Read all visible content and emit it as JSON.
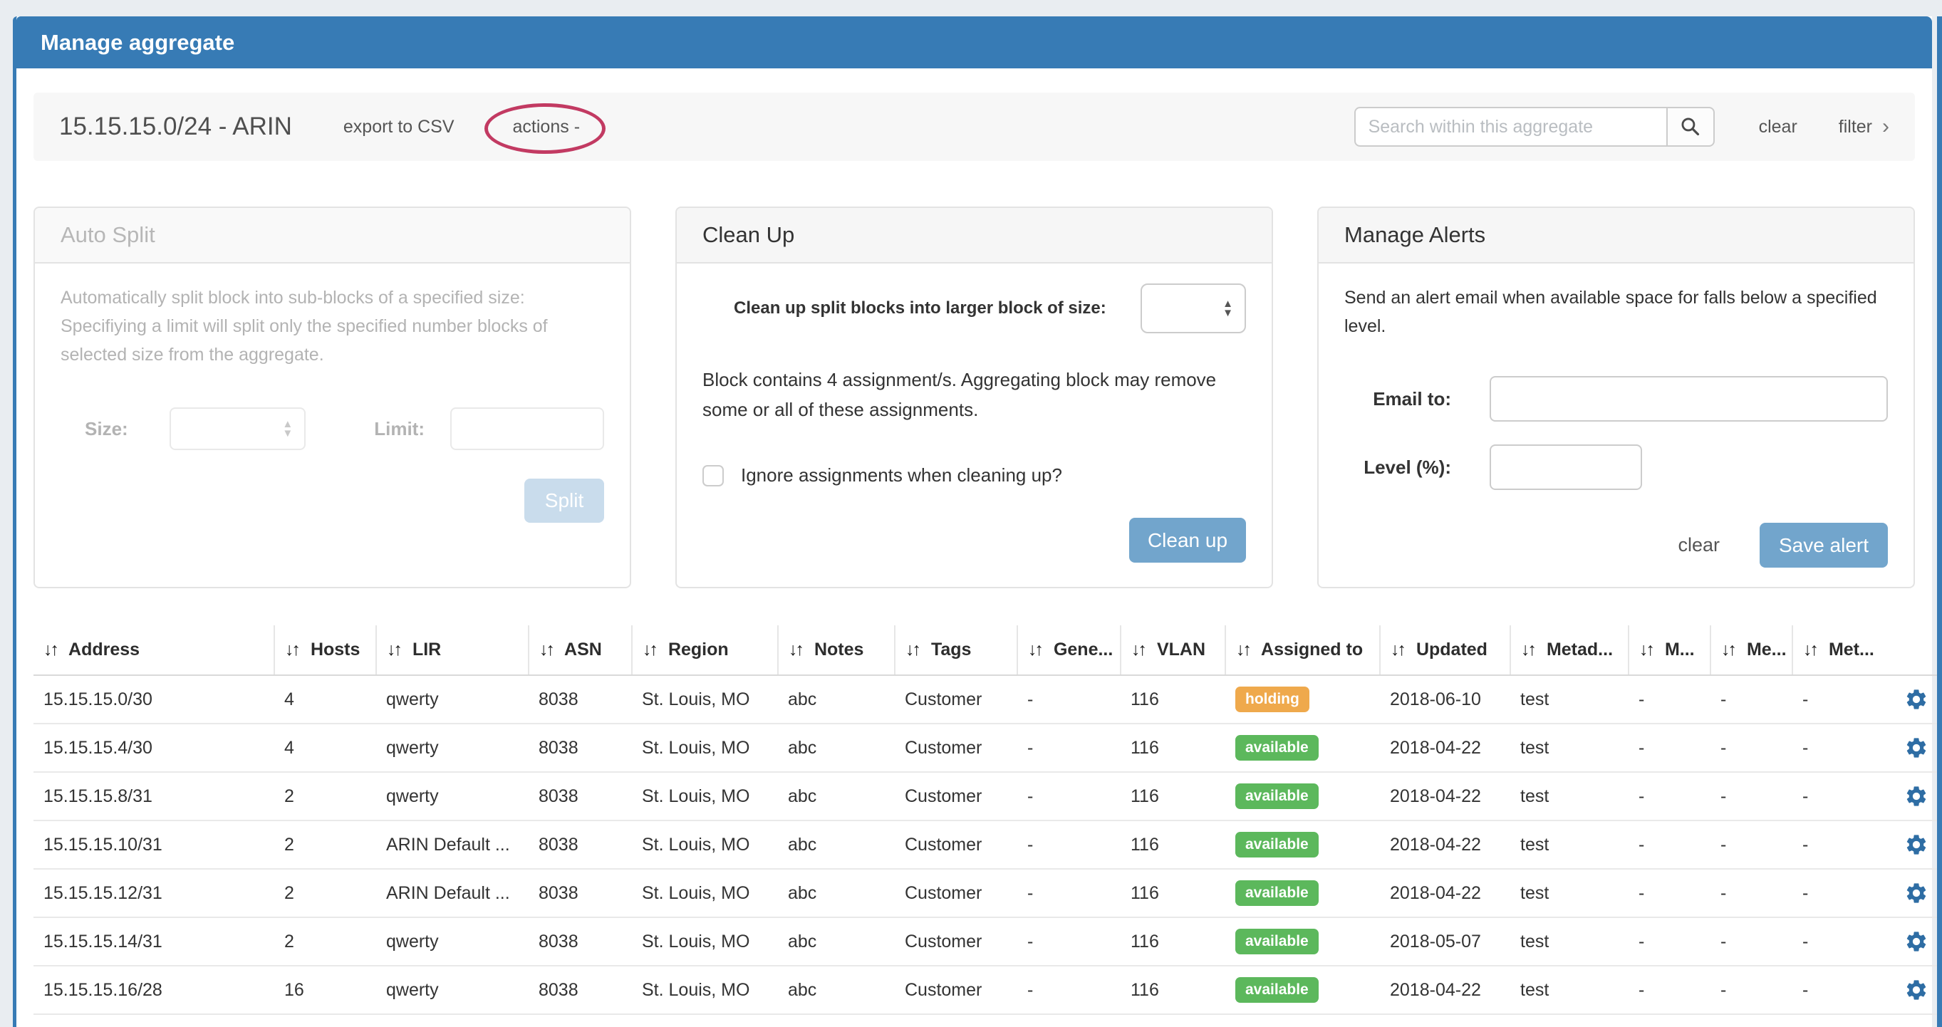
{
  "window": {
    "title": "Manage aggregate"
  },
  "toolbar": {
    "aggregate_title": "15.15.15.0/24 - ARIN",
    "export_csv_label": "export to CSV",
    "actions_label": "actions -",
    "search_placeholder": "Search within this aggregate",
    "search_value": "",
    "clear_label": "clear",
    "filter_label": "filter",
    "filter_chevron": "›"
  },
  "panels": {
    "auto_split": {
      "title": "Auto Split",
      "description": "Automatically split block into sub-blocks of a specified size: Specifiying a limit will split only the specified number blocks of selected size from the aggregate.",
      "size_label": "Size:",
      "size_value": "",
      "limit_label": "Limit:",
      "limit_value": "",
      "split_button": "Split"
    },
    "clean_up": {
      "title": "Clean Up",
      "size_label": "Clean up split blocks into larger block of size:",
      "size_value": "",
      "note": "Block contains 4 assignment/s. Aggregating block may remove some or all of these assignments.",
      "checkbox_label": "Ignore assignments when cleaning up?",
      "checkbox_checked": false,
      "button": "Clean up"
    },
    "manage_alerts": {
      "title": "Manage Alerts",
      "description": "Send an alert email when available space for falls below a specified level.",
      "email_label": "Email to:",
      "email_value": "",
      "level_label": "Level (%):",
      "level_value": "",
      "clear_label": "clear",
      "save_button": "Save alert"
    }
  },
  "table": {
    "sort_icon": "↓↑",
    "columns": [
      "Address",
      "Hosts",
      "LIR",
      "ASN",
      "Region",
      "Notes",
      "Tags",
      "Gene...",
      "VLAN",
      "Assigned to",
      "Updated",
      "Metad...",
      "M...",
      "Me...",
      "Met..."
    ],
    "fields": [
      "address",
      "hosts",
      "lir",
      "asn",
      "region",
      "notes",
      "tags",
      "gene",
      "vlan",
      "assigned",
      "updated",
      "metad",
      "m1",
      "m2",
      "m3"
    ],
    "rows": [
      {
        "address": "15.15.15.0/30",
        "hosts": "4",
        "lir": "qwerty",
        "asn": "8038",
        "region": "St. Louis, MO",
        "notes": "abc",
        "tags": "Customer",
        "gene": "-",
        "vlan": "116",
        "assigned": "holding",
        "updated": "2018-06-10",
        "metad": "test",
        "m1": "-",
        "m2": "-",
        "m3": "-"
      },
      {
        "address": "15.15.15.4/30",
        "hosts": "4",
        "lir": "qwerty",
        "asn": "8038",
        "region": "St. Louis, MO",
        "notes": "abc",
        "tags": "Customer",
        "gene": "-",
        "vlan": "116",
        "assigned": "available",
        "updated": "2018-04-22",
        "metad": "test",
        "m1": "-",
        "m2": "-",
        "m3": "-"
      },
      {
        "address": "15.15.15.8/31",
        "hosts": "2",
        "lir": "qwerty",
        "asn": "8038",
        "region": "St. Louis, MO",
        "notes": "abc",
        "tags": "Customer",
        "gene": "-",
        "vlan": "116",
        "assigned": "available",
        "updated": "2018-04-22",
        "metad": "test",
        "m1": "-",
        "m2": "-",
        "m3": "-"
      },
      {
        "address": "15.15.15.10/31",
        "hosts": "2",
        "lir": "ARIN Default ...",
        "asn": "8038",
        "region": "St. Louis, MO",
        "notes": "abc",
        "tags": "Customer",
        "gene": "-",
        "vlan": "116",
        "assigned": "available",
        "updated": "2018-04-22",
        "metad": "test",
        "m1": "-",
        "m2": "-",
        "m3": "-"
      },
      {
        "address": "15.15.15.12/31",
        "hosts": "2",
        "lir": "ARIN Default ...",
        "asn": "8038",
        "region": "St. Louis, MO",
        "notes": "abc",
        "tags": "Customer",
        "gene": "-",
        "vlan": "116",
        "assigned": "available",
        "updated": "2018-04-22",
        "metad": "test",
        "m1": "-",
        "m2": "-",
        "m3": "-"
      },
      {
        "address": "15.15.15.14/31",
        "hosts": "2",
        "lir": "qwerty",
        "asn": "8038",
        "region": "St. Louis, MO",
        "notes": "abc",
        "tags": "Customer",
        "gene": "-",
        "vlan": "116",
        "assigned": "available",
        "updated": "2018-05-07",
        "metad": "test",
        "m1": "-",
        "m2": "-",
        "m3": "-"
      },
      {
        "address": "15.15.15.16/28",
        "hosts": "16",
        "lir": "qwerty",
        "asn": "8038",
        "region": "St. Louis, MO",
        "notes": "abc",
        "tags": "Customer",
        "gene": "-",
        "vlan": "116",
        "assigned": "available",
        "updated": "2018-04-22",
        "metad": "test",
        "m1": "-",
        "m2": "-",
        "m3": "-"
      }
    ]
  },
  "colors": {
    "header_blue": "#377bb5",
    "button_blue": "#72a5cc",
    "disabled_button_blue": "#c9dcec",
    "annotation_red": "#c23a62",
    "gear_blue": "#2e6da4",
    "badge": {
      "holding": "#efa94c",
      "available": "#5cb85c"
    }
  }
}
